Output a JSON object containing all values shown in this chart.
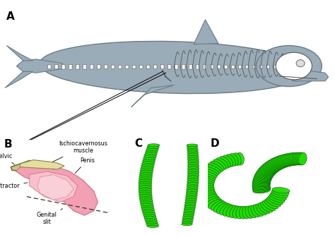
{
  "panel_labels": [
    "A",
    "B",
    "C",
    "D"
  ],
  "panel_label_fontsize": 11,
  "panel_label_fontweight": "bold",
  "background_color": "#ffffff",
  "dolphin_body_color": "#9aacb8",
  "dolphin_edge_color": "#6a7c88",
  "anatomy_pink": "#f4a0b4",
  "anatomy_cream": "#e8d890",
  "anatomy_dark": "#555533",
  "green_3d": "#22dd00",
  "green_3d_dark": "#005500",
  "green_3d_mid": "#44bb00",
  "figsize": [
    4.74,
    3.33
  ],
  "dpi": 100
}
